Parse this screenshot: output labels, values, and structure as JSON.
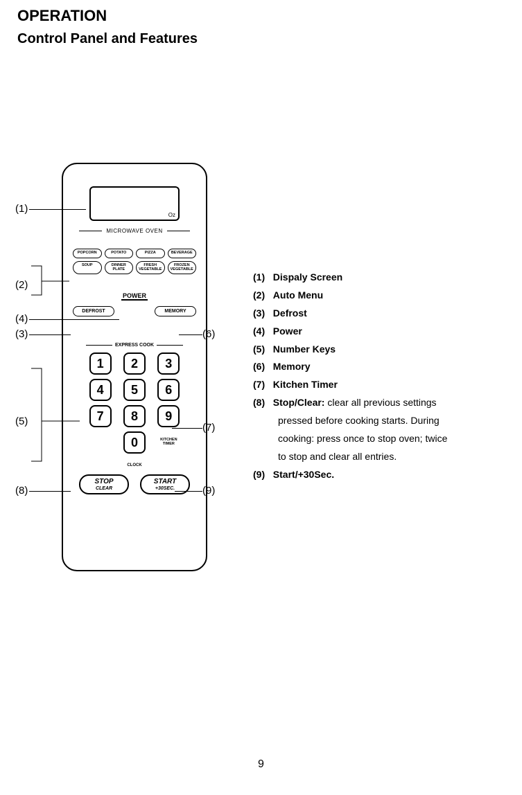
{
  "headings": {
    "title": "OPERATION",
    "subtitle": "Control Panel and Features"
  },
  "panel": {
    "display": {
      "oz": "Oz"
    },
    "microwave_label": "MICROWAVE OVEN",
    "menu_buttons": [
      "POPCORN",
      "POTATO",
      "PIZZA",
      "BEVERAGE",
      "SOUP",
      "DINNER\nPLATE",
      "FRESH\nVEGETABLE",
      "FROZEN\nVEGETABLE"
    ],
    "power_label": "POWER",
    "defrost_label": "DEFROST",
    "memory_label": "MEMORY",
    "express_label": "EXPRESS COOK",
    "number_keys": [
      "1",
      "2",
      "3",
      "4",
      "5",
      "6",
      "7",
      "8",
      "9",
      "0"
    ],
    "kitchen_timer_label": "KITCHEN\nTIMER",
    "clock_label": "CLOCK",
    "stop_btn": {
      "line1": "STOP",
      "line2": "CLEAR"
    },
    "start_btn": {
      "line1": "START",
      "line2": "+30SEC."
    }
  },
  "callouts": {
    "c1": "(1)",
    "c2": "(2)",
    "c3": "(3)",
    "c4": "(4)",
    "c5": "(5)",
    "c6": "(6)",
    "c7": "(7)",
    "c8": "(8)",
    "c9": "(9)"
  },
  "features": [
    {
      "num": "(1)",
      "label": "Dispaly Screen"
    },
    {
      "num": "(2)",
      "label": "Auto Menu"
    },
    {
      "num": "(3)",
      "label": "Defrost"
    },
    {
      "num": "(4)",
      "label": "Power"
    },
    {
      "num": "(5)",
      "label": "Number Keys"
    },
    {
      "num": "(6)",
      "label": "Memory"
    },
    {
      "num": "(7)",
      "label": "Kitchen Timer"
    },
    {
      "num": "(8)",
      "label": "Stop/Clear:",
      "desc": "clear all previous  settings pressed before cooking starts. During cooking: press once to stop oven; twice to stop and clear all entries."
    },
    {
      "num": "(9)",
      "label": "Start/+30Sec."
    }
  ],
  "page_number": "9",
  "colors": {
    "text": "#000000",
    "background": "#ffffff"
  }
}
